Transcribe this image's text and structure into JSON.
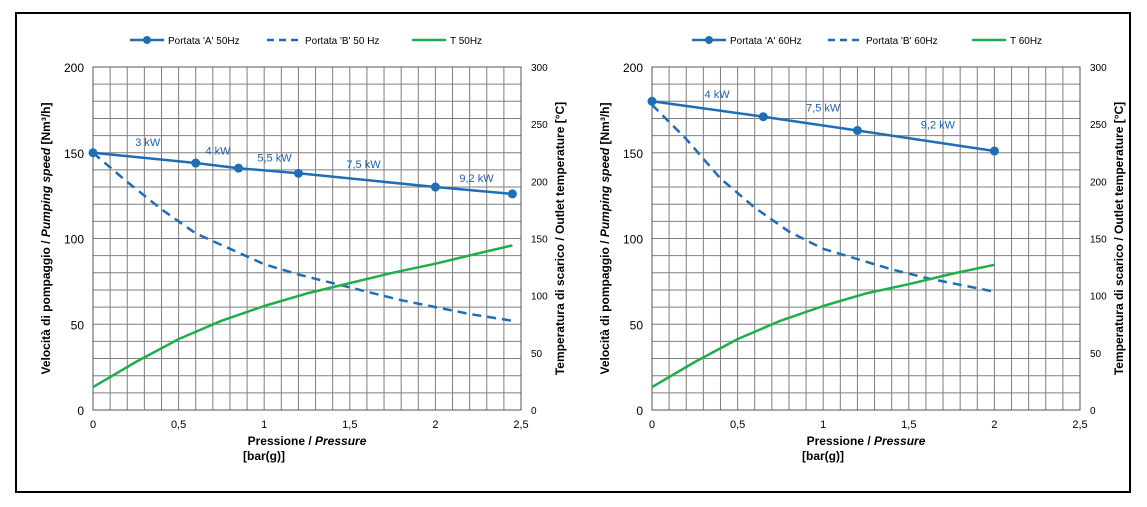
{
  "colors": {
    "blue": "#1f6db6",
    "green": "#1fae4b",
    "grid": "#7f7f7f",
    "label_blue": "#1f5fa8"
  },
  "chart_data": [
    {
      "type": "line",
      "title": "",
      "xlabel_main": "Pressione / ",
      "xlabel_italic": "Pressure",
      "xlabel_unit": "[bar(g)]",
      "ylabel_left_main": "Velocità di pompaggio / ",
      "ylabel_left_italic": "Pumping speed",
      "ylabel_left_unit": " [Nm³/h]",
      "ylabel_right": "Temperatura di scarico / Outlet temperature [°C]",
      "xlim": [
        0,
        2.5
      ],
      "ylim_left": [
        0,
        200
      ],
      "ylim_right": [
        0,
        300
      ],
      "x_ticks": [
        "0",
        "0,5",
        "1",
        "1,5",
        "2",
        "2,5"
      ],
      "y_ticks_left": [
        "0",
        "50",
        "100",
        "150",
        "200"
      ],
      "y_ticks_right": [
        "0",
        "50",
        "100",
        "150",
        "200",
        "250",
        "300"
      ],
      "grid": true,
      "legend_position": "top",
      "series": [
        {
          "name": "Portata 'A' 50Hz",
          "style": "solid-markers",
          "color": "blue",
          "axis": "left",
          "x": [
            0,
            0.6,
            0.85,
            1.2,
            2.0,
            2.45
          ],
          "y": [
            150,
            144,
            141,
            138,
            130,
            126
          ]
        },
        {
          "name": "Portata 'B' 50 Hz",
          "style": "dashed",
          "color": "blue",
          "axis": "left",
          "x": [
            0,
            0.2,
            0.4,
            0.6,
            0.8,
            1.0,
            1.2,
            1.4,
            1.6,
            1.8,
            2.0,
            2.2,
            2.45
          ],
          "y": [
            150,
            133,
            117,
            103,
            94,
            85,
            79,
            74,
            69,
            64,
            60,
            56,
            52
          ]
        },
        {
          "name": "T 50Hz",
          "style": "solid",
          "color": "green",
          "axis": "right",
          "x": [
            0,
            0.25,
            0.5,
            0.75,
            1.0,
            1.25,
            1.5,
            1.75,
            2.0,
            2.25,
            2.45
          ],
          "y": [
            20,
            42,
            62,
            78,
            91,
            102,
            111,
            120,
            128,
            137,
            144
          ]
        }
      ],
      "annotations": [
        {
          "text": "3 kW",
          "x": 0.32,
          "y": 154
        },
        {
          "text": "4 kW",
          "x": 0.73,
          "y": 149
        },
        {
          "text": "5,5 kW",
          "x": 1.06,
          "y": 145
        },
        {
          "text": "7,5 kW",
          "x": 1.58,
          "y": 141
        },
        {
          "text": "9,2 kW",
          "x": 2.24,
          "y": 133
        }
      ]
    },
    {
      "type": "line",
      "title": "",
      "xlabel_main": "Pressione / ",
      "xlabel_italic": "Pressure",
      "xlabel_unit": "[bar(g)]",
      "ylabel_left_main": "Velocità di pompaggio / ",
      "ylabel_left_italic": "Pumping speed",
      "ylabel_left_unit": " [Nm³/h]",
      "ylabel_right": "Temperatura di scarico / Outlet temperature [°C]",
      "xlim": [
        0,
        2.5
      ],
      "ylim_left": [
        0,
        200
      ],
      "ylim_right": [
        0,
        300
      ],
      "x_ticks": [
        "0",
        "0,5",
        "1",
        "1,5",
        "2",
        "2,5"
      ],
      "y_ticks_left": [
        "0",
        "50",
        "100",
        "150",
        "200"
      ],
      "y_ticks_right": [
        "0",
        "50",
        "100",
        "150",
        "200",
        "250",
        "300"
      ],
      "grid": true,
      "legend_position": "top",
      "series": [
        {
          "name": "Portata 'A' 60Hz",
          "style": "solid-markers",
          "color": "blue",
          "axis": "left",
          "x": [
            0,
            0.65,
            1.2,
            2.0
          ],
          "y": [
            180,
            171,
            163,
            151
          ]
        },
        {
          "name": "Portata 'B' 60Hz",
          "style": "dashed",
          "color": "blue",
          "axis": "left",
          "x": [
            0,
            0.2,
            0.4,
            0.6,
            0.8,
            1.0,
            1.2,
            1.4,
            1.6,
            1.8,
            2.0
          ],
          "y": [
            178,
            158,
            135,
            118,
            104,
            94,
            88,
            82,
            77,
            73,
            69
          ]
        },
        {
          "name": "T 60Hz",
          "style": "solid",
          "color": "green",
          "axis": "right",
          "x": [
            0,
            0.25,
            0.5,
            0.75,
            1.0,
            1.25,
            1.5,
            1.75,
            2.0
          ],
          "y": [
            20,
            42,
            62,
            78,
            91,
            102,
            110,
            119,
            127
          ]
        }
      ],
      "annotations": [
        {
          "text": "4 kW",
          "x": 0.38,
          "y": 182
        },
        {
          "text": "7,5 kW",
          "x": 1.0,
          "y": 174
        },
        {
          "text": "9,2 kW",
          "x": 1.67,
          "y": 164
        }
      ]
    }
  ]
}
